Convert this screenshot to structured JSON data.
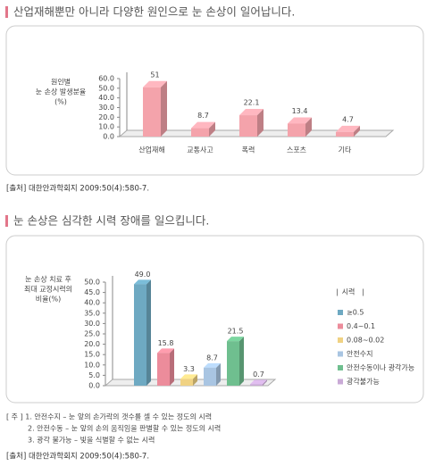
{
  "chart_data": [
    {
      "type": "bar",
      "title": "산업재해뿐만 아니라 다양한 원인으로 눈 손상이 일어납니다.",
      "ylabel": [
        "원인별",
        "눈 손상 발생분율",
        "(%)"
      ],
      "categories": [
        "산업재해",
        "교통사고",
        "폭력",
        "스포츠",
        "기타"
      ],
      "values": [
        51,
        8.7,
        22.1,
        13.4,
        4.7
      ],
      "color": "#f4a3ab",
      "ylim": [
        0,
        60
      ],
      "yticks": [
        {
          "value": 0,
          "label": "0.0"
        },
        {
          "value": 10,
          "label": "10.0"
        },
        {
          "value": 20,
          "label": "20.0"
        },
        {
          "value": 30,
          "label": "30.0"
        },
        {
          "value": 40,
          "label": "40.0"
        },
        {
          "value": 50,
          "label": "50.0"
        },
        {
          "value": 60,
          "label": "60.0"
        }
      ],
      "source": "[출처] 대한안과학회지 2009:50(4):580-7."
    },
    {
      "type": "bar",
      "title": "눈 손상은 심각한 시력 장애를 일으킵니다.",
      "ylabel": [
        "눈 손상 치료 후",
        "최대 교정시력의",
        "비율(%)"
      ],
      "legend_title": "시력",
      "series": [
        {
          "name": "≥0.5",
          "color": "#6ea9c2",
          "values": [
            49.0
          ],
          "value_labels": [
            "49.0"
          ]
        },
        {
          "name": "0.4~0.1",
          "color": "#ec8c9b",
          "values": [
            15.8
          ]
        },
        {
          "name": "0.08~0.02",
          "color": "#f0d283",
          "values": [
            3.3
          ]
        },
        {
          "name": "안전수지",
          "color": "#a9c5e2",
          "values": [
            8.7
          ]
        },
        {
          "name": "안전수동이나 광각가능",
          "color": "#6fbf8f",
          "values": [
            21.5
          ]
        },
        {
          "name": "광각불가능",
          "color": "#c9aad6",
          "values": [
            0.7
          ]
        }
      ],
      "ylim": [
        0,
        50
      ],
      "yticks": [
        {
          "value": 0,
          "label": "0.0"
        },
        {
          "value": 5,
          "label": "5.0"
        },
        {
          "value": 10,
          "label": "10.0"
        },
        {
          "value": 15,
          "label": "15.0"
        },
        {
          "value": 20,
          "label": "20.0"
        },
        {
          "value": 25,
          "label": "25.0"
        },
        {
          "value": 30,
          "label": "30.0"
        },
        {
          "value": 35,
          "label": "35.0"
        },
        {
          "value": 40,
          "label": "40.0"
        },
        {
          "value": 45,
          "label": "45.0"
        },
        {
          "value": 50,
          "label": "50.0"
        }
      ],
      "notes": [
        "[ 주 ] 1. 안전수지 – 눈 앞의 손가락의 갯수를 셀 수 있는 정도의 시력",
        "2. 안전수동 – 눈 앞의 손의 움직임을 판별할 수 있는 정도의 시력",
        "3. 광각 불가능 – 빛을 식별할 수 없는 시력"
      ],
      "source": "[출처] 대한안과학회지 2009:50(4):580-7."
    }
  ]
}
